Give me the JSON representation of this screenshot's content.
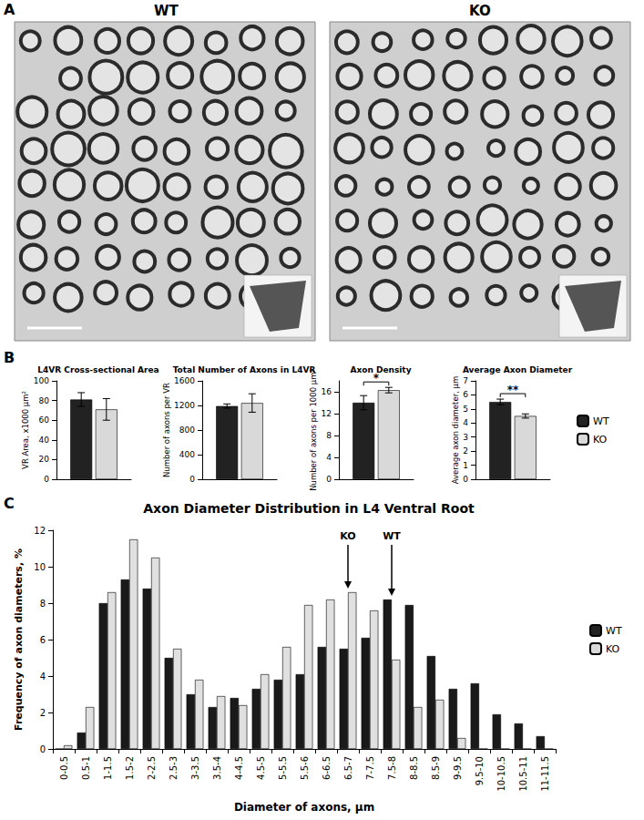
{
  "panel_labels": [
    "A",
    "B",
    "C"
  ],
  "micrographs": [
    {
      "title": "WT"
    },
    {
      "title": "KO"
    }
  ],
  "chart_data": [
    {
      "type": "bar",
      "title": "L4VR Cross-sectional Area",
      "y_label": "VR Area, x1000 µm²",
      "categories": [
        null
      ],
      "series": [
        {
          "name": "WT",
          "color": "#222222",
          "values": [
            81
          ],
          "errors": [
            7
          ]
        },
        {
          "name": "KO",
          "color": "#d9d9d9",
          "values": [
            71
          ],
          "errors": [
            11
          ]
        }
      ],
      "ylim": [
        0,
        100
      ],
      "yticks": [
        0,
        20,
        40,
        60,
        80,
        100
      ],
      "grid": false,
      "tick_labels": "y"
    },
    {
      "type": "bar",
      "title": "Total Number of Axons in L4VR",
      "y_label": "Number of axons per VR",
      "categories": [
        null
      ],
      "series": [
        {
          "name": "WT",
          "color": "#222222",
          "values": [
            1190
          ],
          "errors": [
            35
          ]
        },
        {
          "name": "KO",
          "color": "#d9d9d9",
          "values": [
            1240
          ],
          "errors": [
            150
          ]
        }
      ],
      "ylim": [
        0,
        1600
      ],
      "yticks": [
        0,
        400,
        800,
        1200,
        1600
      ],
      "grid": false,
      "tick_labels": "y"
    },
    {
      "type": "bar",
      "title": "Axon Density",
      "y_label": "Number of axons per 1000 µm²",
      "categories": [
        null
      ],
      "series": [
        {
          "name": "WT",
          "color": "#222222",
          "values": [
            14
          ],
          "errors": [
            1.3
          ]
        },
        {
          "name": "KO",
          "color": "#d9d9d9",
          "values": [
            16.3
          ],
          "errors": [
            0.5
          ]
        }
      ],
      "ylim": [
        0,
        18
      ],
      "yticks": [
        0,
        4,
        8,
        12,
        16
      ],
      "annotations": [
        {
          "text": "*",
          "between": [
            "WT",
            "KO"
          ]
        }
      ],
      "grid": false,
      "tick_labels": "y"
    },
    {
      "type": "bar",
      "title": "Average Axon Diameter",
      "y_label": "Average axon diameter, µm",
      "categories": [
        null
      ],
      "series": [
        {
          "name": "WT",
          "color": "#222222",
          "values": [
            5.5
          ],
          "errors": [
            0.2
          ]
        },
        {
          "name": "KO",
          "color": "#d9d9d9",
          "values": [
            4.5
          ],
          "errors": [
            0.15
          ]
        }
      ],
      "ylim": [
        0,
        7
      ],
      "yticks": [
        0,
        1,
        2,
        3,
        4,
        5,
        6,
        7
      ],
      "annotations": [
        {
          "text": "**",
          "between": [
            "WT",
            "KO"
          ]
        }
      ],
      "grid": false,
      "tick_labels": "y",
      "legend": "right"
    },
    {
      "type": "bar",
      "title": "Axon Diameter Distribution in L4 Ventral Root",
      "x_label": "Diameter of axons, µm",
      "y_label": "Frequency of axon diameters, %",
      "categories": [
        "0-0.5",
        "0.5-1",
        "1-1.5",
        "1.5-2",
        "2-2.5",
        "2.5-3",
        "3-3.5",
        "3.5-4",
        "4-4.5",
        "4.5-5",
        "5-5.5",
        "5.5-6",
        "6-6.5",
        "6.5-7",
        "7-7.5",
        "7.5-8",
        "8-8.5",
        "8.5-9",
        "9-9.5",
        "9.5-10",
        "10-10.5",
        "10.5-11",
        "11-11.5"
      ],
      "series": [
        {
          "name": "WT",
          "color": "#1a1a1a",
          "values": [
            0,
            0.9,
            8.0,
            9.3,
            8.8,
            5.0,
            3.0,
            2.3,
            2.8,
            3.3,
            3.8,
            4.1,
            5.6,
            5.5,
            6.1,
            8.2,
            7.9,
            5.1,
            3.3,
            3.6,
            1.9,
            1.4,
            0.7
          ]
        },
        {
          "name": "KO",
          "color": "#e0e0e0",
          "values": [
            0.2,
            2.3,
            8.6,
            11.5,
            10.5,
            5.5,
            3.8,
            2.9,
            2.4,
            4.1,
            5.6,
            7.9,
            8.2,
            8.6,
            7.6,
            4.9,
            2.3,
            2.7,
            0.6,
            0,
            0,
            0,
            0
          ]
        }
      ],
      "ylim": [
        0,
        12
      ],
      "yticks": [
        0,
        2,
        4,
        6,
        8,
        10,
        12
      ],
      "annotations": [
        {
          "text": "KO",
          "category": "6.5-7"
        },
        {
          "text": "WT",
          "category": "7.5-8"
        }
      ],
      "grid": false,
      "legend": "right"
    }
  ]
}
